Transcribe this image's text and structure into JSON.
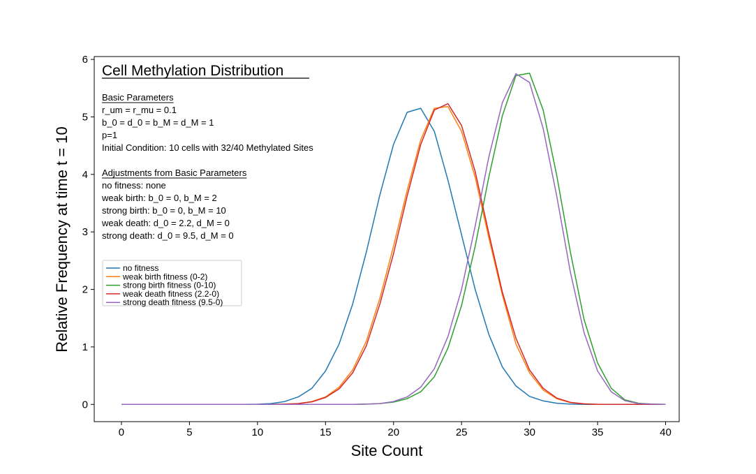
{
  "chart_data": {
    "type": "line",
    "title": "Cell Methylation Distribution",
    "xlabel": "Site Count",
    "ylabel": "Relative Frequency at time t = 10",
    "xlim": [
      -2,
      41
    ],
    "ylim": [
      -0.3,
      6.05
    ],
    "xticks": [
      0,
      5,
      10,
      15,
      20,
      25,
      30,
      35,
      40
    ],
    "yticks": [
      0,
      1,
      2,
      3,
      4,
      5,
      6
    ],
    "grid": false,
    "legend_position": "left, middle",
    "annotation": {
      "section1_header": "Basic Parameters",
      "section1_lines": [
        "r_um = r_mu = 0.1",
        "b_0 = d_0 = b_M = d_M = 1",
        "p=1",
        "Initial Condition: 10 cells with 32/40 Methylated Sites"
      ],
      "section2_header": "Adjustments from Basic Parameters",
      "section2_lines": [
        "no fitness: none",
        "weak birth: b_0 = 0, b_M = 2",
        "strong birth: b_0 = 0, b_M = 10",
        "weak death: d_0 = 2.2, d_M = 0",
        "strong death: d_0 = 9.5, d_M = 0"
      ]
    },
    "x": [
      0,
      1,
      2,
      3,
      4,
      5,
      6,
      7,
      8,
      9,
      10,
      11,
      12,
      13,
      14,
      15,
      16,
      17,
      18,
      19,
      20,
      21,
      22,
      23,
      24,
      25,
      26,
      27,
      28,
      29,
      30,
      31,
      32,
      33,
      34,
      35,
      36,
      37,
      38,
      39,
      40
    ],
    "series": [
      {
        "name": "no fitness",
        "color": "#1f77b4",
        "values": [
          0,
          0,
          0,
          0,
          0,
          0,
          0,
          0,
          0,
          0,
          0.003,
          0.015,
          0.05,
          0.13,
          0.28,
          0.58,
          1.05,
          1.75,
          2.65,
          3.65,
          4.52,
          5.08,
          5.15,
          4.75,
          3.9,
          2.95,
          2.0,
          1.22,
          0.65,
          0.32,
          0.14,
          0.06,
          0.02,
          0.005,
          0,
          0,
          0,
          0,
          0,
          0,
          0
        ]
      },
      {
        "name": "weak birth fitness (0-2)",
        "color": "#ff7f0e",
        "values": [
          0,
          0,
          0,
          0,
          0,
          0,
          0,
          0,
          0,
          0,
          0,
          0,
          0.005,
          0.015,
          0.05,
          0.13,
          0.3,
          0.6,
          1.1,
          1.85,
          2.75,
          3.72,
          4.6,
          5.15,
          5.18,
          4.75,
          3.95,
          2.9,
          1.9,
          1.05,
          0.55,
          0.25,
          0.1,
          0.03,
          0.01,
          0,
          0,
          0,
          0,
          0,
          0
        ]
      },
      {
        "name": "strong birth fitness (0-10)",
        "color": "#2ca02c",
        "values": [
          0,
          0,
          0,
          0,
          0,
          0,
          0,
          0,
          0,
          0,
          0,
          0,
          0,
          0,
          0,
          0,
          0,
          0,
          0.005,
          0.015,
          0.04,
          0.1,
          0.22,
          0.48,
          0.98,
          1.72,
          2.75,
          3.95,
          5.02,
          5.72,
          5.76,
          5.12,
          3.98,
          2.65,
          1.48,
          0.72,
          0.28,
          0.08,
          0.02,
          0.005,
          0
        ]
      },
      {
        "name": "weak death fitness (2.2-0)",
        "color": "#d62728",
        "values": [
          0,
          0,
          0,
          0,
          0,
          0,
          0,
          0,
          0,
          0,
          0,
          0,
          0.005,
          0.015,
          0.045,
          0.12,
          0.27,
          0.55,
          1.02,
          1.75,
          2.62,
          3.62,
          4.52,
          5.12,
          5.23,
          4.85,
          4.05,
          2.98,
          1.95,
          1.15,
          0.6,
          0.28,
          0.11,
          0.035,
          0.01,
          0,
          0,
          0,
          0,
          0,
          0
        ]
      },
      {
        "name": "strong death fitness (9.5-0)",
        "color": "#9467bd",
        "values": [
          0,
          0,
          0,
          0,
          0,
          0,
          0,
          0,
          0,
          0,
          0,
          0,
          0,
          0,
          0,
          0,
          0,
          0,
          0.005,
          0.015,
          0.05,
          0.13,
          0.3,
          0.62,
          1.18,
          2.0,
          3.1,
          4.3,
          5.25,
          5.75,
          5.6,
          4.8,
          3.62,
          2.3,
          1.25,
          0.58,
          0.22,
          0.065,
          0.015,
          0.005,
          0
        ]
      }
    ]
  }
}
